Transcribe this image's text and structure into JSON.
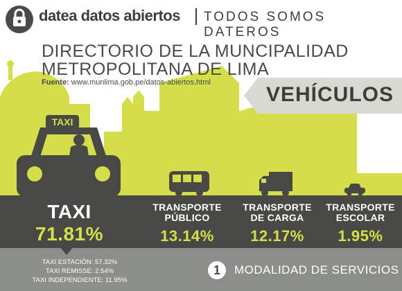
{
  "header": {
    "brand": "datea datos abiertos",
    "tagline": "TODOS SOMOS DATEROS",
    "logo_icon": "lock-chat-icon"
  },
  "title": {
    "line1": "DIRECTORIO DE  LA MUNCIPALIDAD",
    "line2": "METROPOLITANA DE LIMA",
    "source_label": "Fuente:",
    "source_url": "www.munlima.gob.pe/datos-abiertos.html"
  },
  "banner": {
    "text": "VEHÍCULOS"
  },
  "illustration": {
    "taxi_sign": "TAXI",
    "colors": {
      "skyline": "#d3de4a",
      "dark": "#484845",
      "bottom": "#8c8e89",
      "accent": "#d4e04a"
    }
  },
  "stats": {
    "taxi": {
      "label": "TAXI",
      "value": "71.81%"
    },
    "transporte_publico": {
      "label_line1": "TRANSPORTE",
      "label_line2": "PÚBLICO",
      "value": "13.14%"
    },
    "transporte_carga": {
      "label_line1": "TRANSPORTE",
      "label_line2": "DE CARGA",
      "value": "12.17%"
    },
    "transporte_escolar": {
      "label_line1": "TRANSPORTE",
      "label_line2": "ESCOLAR",
      "value": "1.95%"
    }
  },
  "taxi_breakdown": [
    "TAXI ESTACIÓN: 57.32%",
    "TAXI REMISSE: 2.54%",
    "TAXI INDEPENDIENTE: 11.95%"
  ],
  "section": {
    "number": "1",
    "title": "MODALIDAD DE SERVICIOS"
  }
}
